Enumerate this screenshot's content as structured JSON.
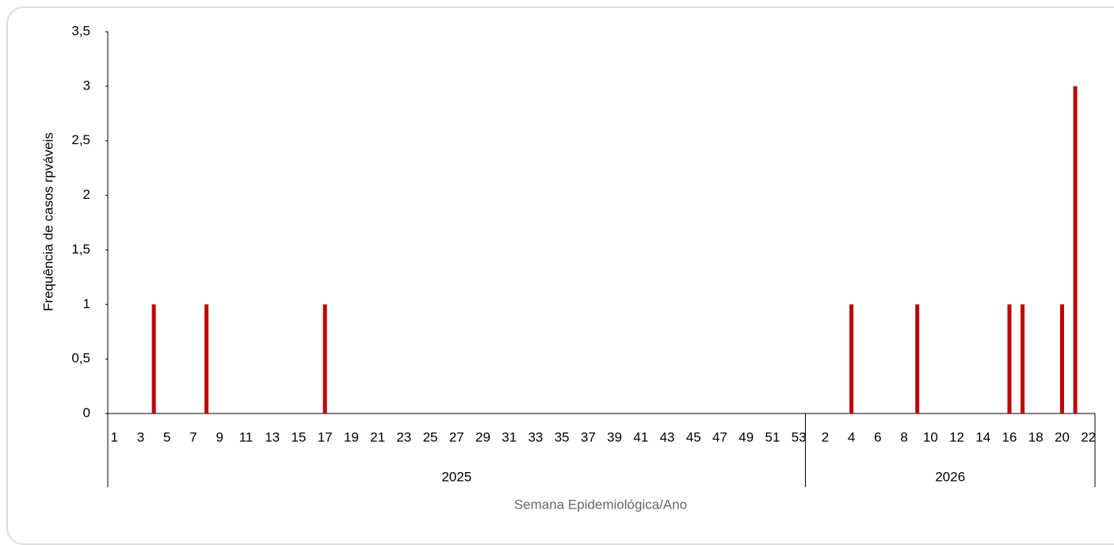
{
  "chart_data": {
    "type": "bar",
    "y_label": "Frequência de casos rpváveis",
    "x_label": "Semana Epidemiológica/Ano",
    "color": "#c00000",
    "ylim": [
      0,
      3.5
    ],
    "yticks": [
      0,
      {
        "value": 0.5,
        "label": "0,5"
      },
      1,
      {
        "value": 1.5,
        "label": "1,5"
      },
      2,
      {
        "value": 2.5,
        "label": "2,5"
      },
      3,
      {
        "value": 3.5,
        "label": "3,5"
      }
    ],
    "grid": false,
    "groups": [
      {
        "name": "2025",
        "categories": [
          "1",
          null,
          "3",
          null,
          "5",
          null,
          "7",
          null,
          "9",
          null,
          "11",
          null,
          "13",
          null,
          "15",
          null,
          "17",
          null,
          "19",
          null,
          "21",
          null,
          "23",
          null,
          "25",
          null,
          "27",
          null,
          "29",
          null,
          "31",
          null,
          "33",
          null,
          "35",
          null,
          "37",
          null,
          "39",
          null,
          "41",
          null,
          "43",
          null,
          "45",
          null,
          "47",
          null,
          "49",
          null,
          "51",
          null,
          "53"
        ],
        "values": [
          0,
          0,
          0,
          1,
          0,
          0,
          0,
          1,
          0,
          0,
          0,
          0,
          0,
          0,
          0,
          0,
          1,
          0,
          0,
          0,
          0,
          0,
          0,
          0,
          0,
          0,
          0,
          0,
          0,
          0,
          0,
          0,
          0,
          0,
          0,
          0,
          0,
          0,
          0,
          0,
          0,
          0,
          0,
          0,
          0,
          0,
          0,
          0,
          0,
          0,
          0,
          0,
          0
        ]
      },
      {
        "name": "2026",
        "categories": [
          null,
          "2",
          null,
          "4",
          null,
          "6",
          null,
          "8",
          null,
          "10",
          null,
          "12",
          null,
          "14",
          null,
          "16",
          null,
          "18",
          null,
          "20",
          null,
          "22"
        ],
        "values": [
          0,
          0,
          0,
          1,
          0,
          0,
          0,
          0,
          1,
          0,
          0,
          0,
          0,
          0,
          0,
          1,
          1,
          0,
          0,
          1,
          3,
          0
        ]
      }
    ]
  }
}
